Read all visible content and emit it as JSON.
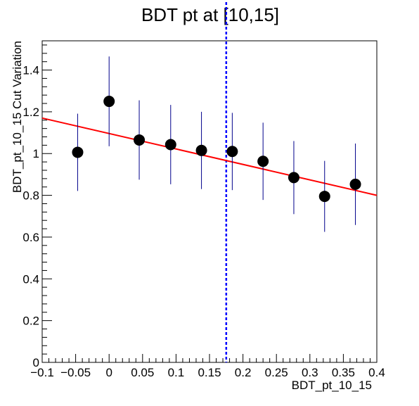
{
  "chart_data": {
    "type": "scatter",
    "title": "BDT pt at [10,15]",
    "xlabel": "BDT_pt_10_15",
    "ylabel": "BDT_pt_10_15 Cut Variation",
    "xlim": [
      -0.1,
      0.4
    ],
    "ylim": [
      0,
      1.54
    ],
    "x_ticks": [
      -0.1,
      -0.05,
      0,
      0.05,
      0.1,
      0.15,
      0.2,
      0.25,
      0.3,
      0.35,
      0.4
    ],
    "x_tick_labels": [
      "−0.1",
      "−0.05",
      "0",
      "0.05",
      "0.1",
      "0.15",
      "0.2",
      "0.25",
      "0.3",
      "0.35",
      "0.4"
    ],
    "y_ticks": [
      0,
      0.2,
      0.4,
      0.6,
      0.8,
      1,
      1.2,
      1.4
    ],
    "y_tick_labels": [
      "0",
      "0.2",
      "0.4",
      "0.6",
      "0.8",
      "1",
      "1.2",
      "1.4"
    ],
    "grid": false,
    "series": [
      {
        "kind": "points_with_errors",
        "color": "#000000",
        "error_color": "#00008b",
        "points": [
          {
            "x": -0.047,
            "y": 1.006,
            "err": 0.185
          },
          {
            "x": 0.0,
            "y": 1.25,
            "err": 0.215
          },
          {
            "x": 0.045,
            "y": 1.065,
            "err": 0.19
          },
          {
            "x": 0.092,
            "y": 1.043,
            "err": 0.19
          },
          {
            "x": 0.138,
            "y": 1.015,
            "err": 0.185
          },
          {
            "x": 0.184,
            "y": 1.01,
            "err": 0.185
          },
          {
            "x": 0.23,
            "y": 0.963,
            "err": 0.185
          },
          {
            "x": 0.276,
            "y": 0.885,
            "err": 0.175
          },
          {
            "x": 0.322,
            "y": 0.795,
            "err": 0.17
          },
          {
            "x": 0.368,
            "y": 0.853,
            "err": 0.195
          }
        ]
      },
      {
        "kind": "fit_line",
        "color": "#ff0000",
        "x": [
          -0.1,
          0.4
        ],
        "y": [
          1.17,
          0.8
        ]
      }
    ],
    "reference_lines": [
      {
        "orientation": "vertical",
        "x": 0.175,
        "color": "#0000ff",
        "style": "dashed"
      }
    ]
  }
}
